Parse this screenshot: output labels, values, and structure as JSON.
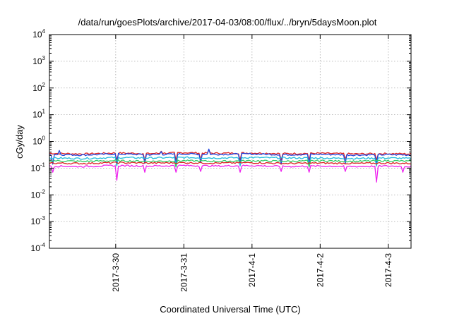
{
  "chart_data": {
    "type": "line",
    "title": "/data/run/goesPlots/archive/2017-04-03/08:00/flux/../bryn/5daysMoon.plot",
    "xlabel": "Coordinated Universal Time (UTC)",
    "ylabel": "cGy/day",
    "yscale": "log",
    "ylim": [
      0.0001,
      10000
    ],
    "yticks": [
      {
        "base": "10",
        "exp": "-4",
        "value": 0.0001
      },
      {
        "base": "10",
        "exp": "-3",
        "value": 0.001
      },
      {
        "base": "10",
        "exp": "-2",
        "value": 0.01
      },
      {
        "base": "10",
        "exp": "-1",
        "value": 0.1
      },
      {
        "base": "10",
        "exp": "0",
        "value": 1
      },
      {
        "base": "10",
        "exp": "1",
        "value": 10
      },
      {
        "base": "10",
        "exp": "2",
        "value": 100
      },
      {
        "base": "10",
        "exp": "3",
        "value": 1000
      },
      {
        "base": "10",
        "exp": "4",
        "value": 10000
      }
    ],
    "xlim": [
      "2017-03-29T00:40",
      "2017-04-03T08:00"
    ],
    "xticks": [
      "2017-3-30",
      "2017-3-31",
      "2017-4-1",
      "2017-4-2",
      "2017-4-3"
    ],
    "grid": true,
    "legend": "none",
    "series": [
      {
        "color": "#dd2222",
        "level": 0.36,
        "points": [
          [
            "2017-03-29T00:40",
            0.36
          ],
          [
            "2017-03-29T12:00",
            0.34
          ],
          [
            "2017-03-30T00:00",
            0.37
          ],
          [
            "2017-03-30T12:00",
            0.35
          ],
          [
            "2017-03-31T00:00",
            0.38
          ],
          [
            "2017-03-31T12:00",
            0.36
          ],
          [
            "2017-04-01T00:00",
            0.37
          ],
          [
            "2017-04-01T12:00",
            0.35
          ],
          [
            "2017-04-02T00:00",
            0.36
          ],
          [
            "2017-04-02T12:00",
            0.34
          ],
          [
            "2017-04-03T00:00",
            0.35
          ],
          [
            "2017-04-03T08:00",
            0.34
          ]
        ],
        "dips": [
          [
            "2017-03-30T00:20",
            0.2
          ],
          [
            "2017-03-30T10:00",
            0.2
          ],
          [
            "2017-03-30T21:30",
            0.19
          ],
          [
            "2017-03-31T06:00",
            0.21
          ],
          [
            "2017-03-31T20:00",
            0.2
          ],
          [
            "2017-04-01T10:00",
            0.2
          ],
          [
            "2017-04-01T20:10",
            0.2
          ],
          [
            "2017-04-02T09:00",
            0.21
          ],
          [
            "2017-04-02T20:00",
            0.2
          ]
        ],
        "spikes": [
          [
            "2017-03-31T09:00",
            0.47
          ],
          [
            "2017-03-30T16:00",
            0.43
          ]
        ]
      },
      {
        "color": "#2244dd",
        "level": 0.33,
        "points": [
          [
            "2017-03-29T00:40",
            0.33
          ],
          [
            "2017-03-29T12:00",
            0.31
          ],
          [
            "2017-03-30T00:00",
            0.34
          ],
          [
            "2017-03-30T12:00",
            0.32
          ],
          [
            "2017-03-31T00:00",
            0.34
          ],
          [
            "2017-03-31T12:00",
            0.33
          ],
          [
            "2017-04-01T00:00",
            0.34
          ],
          [
            "2017-04-01T12:00",
            0.32
          ],
          [
            "2017-04-02T00:00",
            0.33
          ],
          [
            "2017-04-02T12:00",
            0.31
          ],
          [
            "2017-04-03T00:00",
            0.32
          ],
          [
            "2017-04-03T08:00",
            0.31
          ]
        ],
        "dips": [
          [
            "2017-03-29T02:00",
            0.14
          ],
          [
            "2017-03-30T00:20",
            0.16
          ],
          [
            "2017-03-30T10:00",
            0.15
          ],
          [
            "2017-03-30T21:30",
            0.14
          ],
          [
            "2017-03-31T06:00",
            0.16
          ],
          [
            "2017-03-31T20:00",
            0.15
          ],
          [
            "2017-04-01T10:00",
            0.14
          ],
          [
            "2017-04-01T20:10",
            0.15
          ],
          [
            "2017-04-02T09:00",
            0.15
          ],
          [
            "2017-04-02T20:00",
            0.15
          ]
        ],
        "spikes": [
          [
            "2017-03-29T04:00",
            0.46
          ],
          [
            "2017-03-31T09:00",
            0.52
          ],
          [
            "2017-03-30T16:00",
            0.42
          ]
        ]
      },
      {
        "color": "#22bbdd",
        "level": 0.24,
        "points": [
          [
            "2017-03-29T00:40",
            0.24
          ],
          [
            "2017-03-29T12:00",
            0.23
          ],
          [
            "2017-03-30T00:00",
            0.25
          ],
          [
            "2017-03-30T12:00",
            0.24
          ],
          [
            "2017-03-31T00:00",
            0.25
          ],
          [
            "2017-03-31T12:00",
            0.24
          ],
          [
            "2017-04-01T00:00",
            0.25
          ],
          [
            "2017-04-01T12:00",
            0.24
          ],
          [
            "2017-04-02T00:00",
            0.24
          ],
          [
            "2017-04-02T12:00",
            0.23
          ],
          [
            "2017-04-03T00:00",
            0.24
          ],
          [
            "2017-04-03T08:00",
            0.23
          ]
        ],
        "dips": [
          [
            "2017-03-30T00:20",
            0.12
          ],
          [
            "2017-03-30T21:30",
            0.12
          ],
          [
            "2017-03-31T20:00",
            0.12
          ],
          [
            "2017-04-01T20:10",
            0.12
          ],
          [
            "2017-04-02T20:00",
            0.12
          ]
        ],
        "spikes": []
      },
      {
        "color": "#33cc66",
        "level": 0.19,
        "points": [
          [
            "2017-03-29T00:40",
            0.19
          ],
          [
            "2017-03-29T12:00",
            0.18
          ],
          [
            "2017-03-30T00:00",
            0.19
          ],
          [
            "2017-03-30T12:00",
            0.18
          ],
          [
            "2017-03-31T00:00",
            0.19
          ],
          [
            "2017-03-31T12:00",
            0.18
          ],
          [
            "2017-04-01T00:00",
            0.19
          ],
          [
            "2017-04-01T12:00",
            0.18
          ],
          [
            "2017-04-02T00:00",
            0.19
          ],
          [
            "2017-04-02T12:00",
            0.18
          ],
          [
            "2017-04-03T00:00",
            0.19
          ],
          [
            "2017-04-03T08:00",
            0.18
          ]
        ],
        "dips": [
          [
            "2017-03-30T21:30",
            0.11
          ],
          [
            "2017-04-01T20:10",
            0.11
          ]
        ],
        "spikes": []
      },
      {
        "color": "#dd2222",
        "level": 0.155,
        "points": [
          [
            "2017-03-29T00:40",
            0.155
          ],
          [
            "2017-03-29T12:00",
            0.15
          ],
          [
            "2017-03-30T00:00",
            0.16
          ],
          [
            "2017-03-30T12:00",
            0.155
          ],
          [
            "2017-03-31T00:00",
            0.16
          ],
          [
            "2017-03-31T12:00",
            0.155
          ],
          [
            "2017-04-01T00:00",
            0.16
          ],
          [
            "2017-04-01T12:00",
            0.15
          ],
          [
            "2017-04-02T00:00",
            0.155
          ],
          [
            "2017-04-02T12:00",
            0.15
          ],
          [
            "2017-04-03T00:00",
            0.155
          ],
          [
            "2017-04-03T08:00",
            0.15
          ]
        ],
        "dips": [],
        "spikes": []
      },
      {
        "color": "#ee22ee",
        "level": 0.12,
        "points": [
          [
            "2017-03-29T00:40",
            0.12
          ],
          [
            "2017-03-29T12:00",
            0.115
          ],
          [
            "2017-03-30T00:00",
            0.125
          ],
          [
            "2017-03-30T12:00",
            0.12
          ],
          [
            "2017-03-31T00:00",
            0.125
          ],
          [
            "2017-03-31T12:00",
            0.12
          ],
          [
            "2017-04-01T00:00",
            0.125
          ],
          [
            "2017-04-01T12:00",
            0.115
          ],
          [
            "2017-04-02T00:00",
            0.12
          ],
          [
            "2017-04-02T12:00",
            0.115
          ],
          [
            "2017-04-03T00:00",
            0.12
          ],
          [
            "2017-04-03T08:00",
            0.115
          ]
        ],
        "dips": [
          [
            "2017-03-29T02:00",
            0.07
          ],
          [
            "2017-03-30T00:20",
            0.035
          ],
          [
            "2017-03-30T10:00",
            0.07
          ],
          [
            "2017-03-30T21:30",
            0.07
          ],
          [
            "2017-03-31T06:00",
            0.075
          ],
          [
            "2017-03-31T20:00",
            0.07
          ],
          [
            "2017-04-01T10:00",
            0.075
          ],
          [
            "2017-04-01T20:10",
            0.07
          ],
          [
            "2017-04-02T09:00",
            0.075
          ],
          [
            "2017-04-02T20:00",
            0.03
          ],
          [
            "2017-04-03T05:00",
            0.07
          ]
        ],
        "spikes": []
      }
    ]
  }
}
